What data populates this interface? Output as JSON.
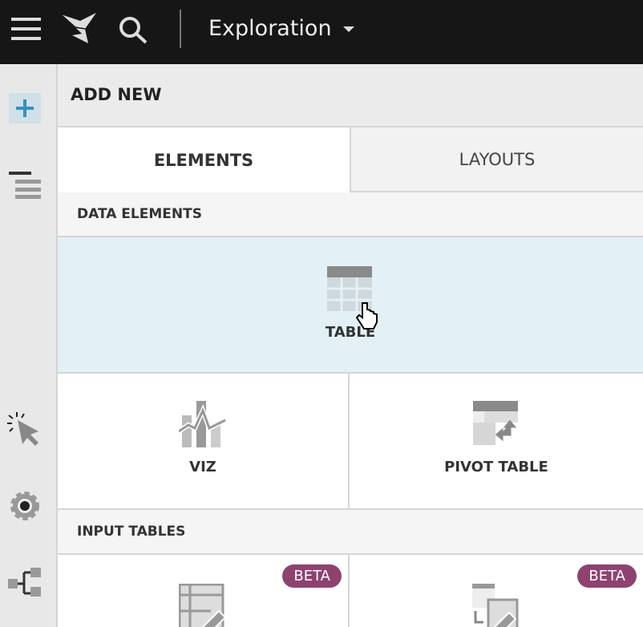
{
  "topbar": {
    "title": "Exploration",
    "icons": [
      "menu-icon",
      "logo-icon",
      "search-icon",
      "caret-down-icon"
    ]
  },
  "sidebar": {
    "icons": [
      "plus-icon",
      "outline-icon",
      "interaction-icon",
      "settings-icon",
      "hierarchy-icon"
    ]
  },
  "panel": {
    "header": "ADD NEW",
    "tabs": [
      {
        "label": "ELEMENTS",
        "active": true
      },
      {
        "label": "LAYOUTS",
        "active": false
      }
    ],
    "sections": [
      {
        "title": "DATA ELEMENTS",
        "items": [
          {
            "label": "TABLE",
            "hovered": true
          },
          {
            "label": "VIZ"
          },
          {
            "label": "PIVOT TABLE"
          }
        ]
      },
      {
        "title": "INPUT TABLES",
        "items": [
          {
            "badge": "BETA"
          },
          {
            "badge": "BETA"
          }
        ]
      }
    ]
  },
  "colors": {
    "topbar": "#161616",
    "hover": "#e3f1f7",
    "badge": "#8e4270",
    "accent": "#3a8fb7"
  }
}
